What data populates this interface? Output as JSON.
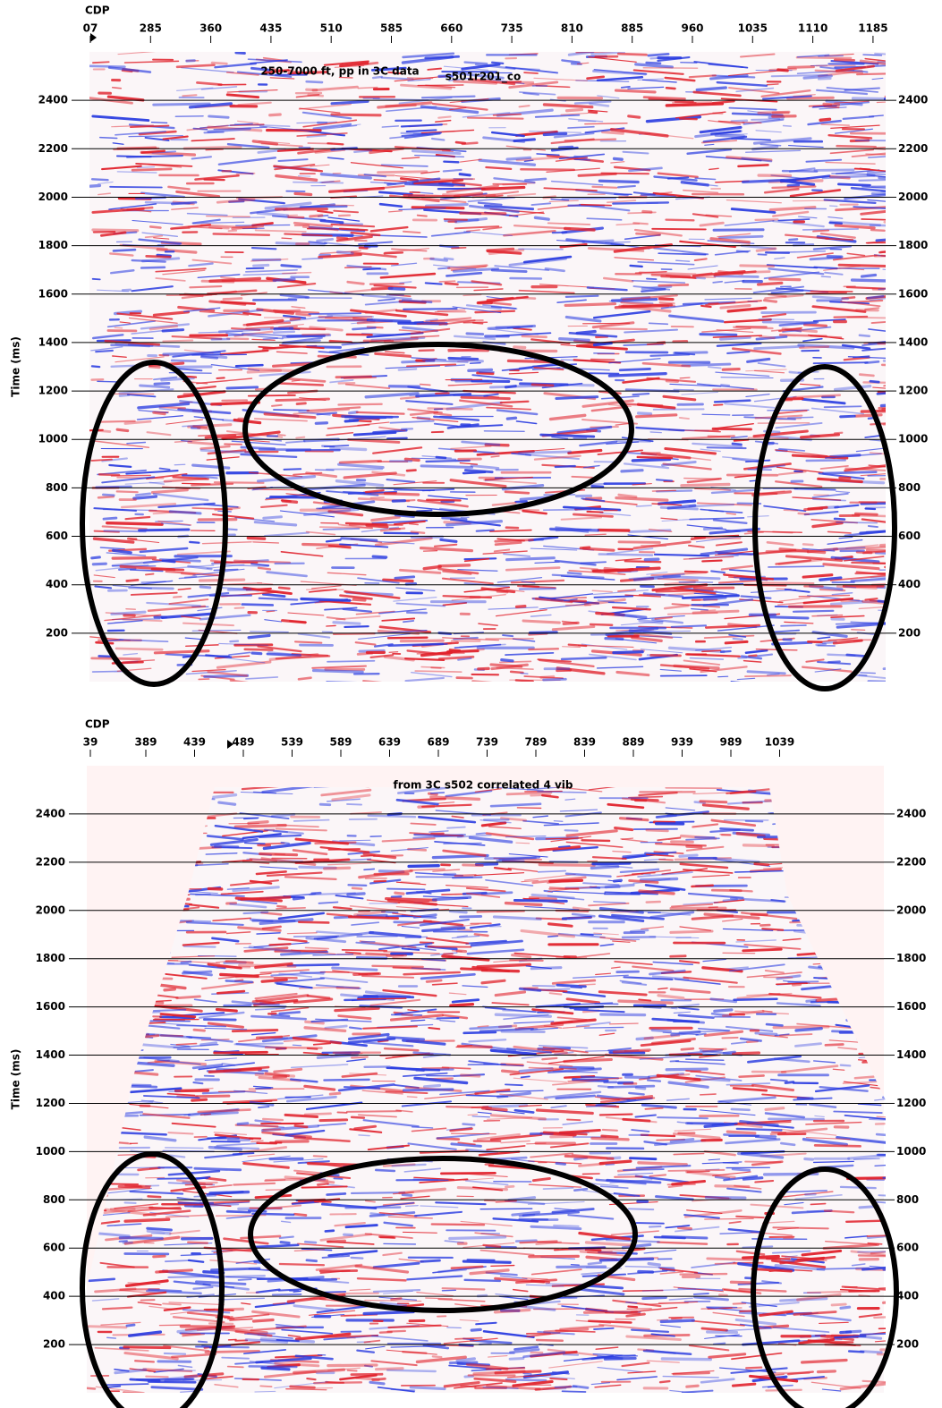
{
  "chart_data": [
    {
      "type": "seismic",
      "xlabel": "CDP",
      "ylabel": "Time (ms)",
      "title": "250-7000 ft, pp in 3C data",
      "subtitle": "s501r201_co",
      "categories": [
        "07",
        "285",
        "360",
        "435",
        "510",
        "585",
        "660",
        "735",
        "810",
        "885",
        "960",
        "1035",
        "1110",
        "1185"
      ],
      "ylim": [
        0,
        2600
      ],
      "yticks": [
        200,
        400,
        600,
        800,
        1000,
        1200,
        1400,
        1600,
        1800,
        2000,
        2200,
        2400
      ],
      "grid": true
    },
    {
      "type": "seismic",
      "xlabel": "CDP",
      "ylabel": "Time (ms)",
      "title": "from 3C s502 correlated 4 vib",
      "categories": [
        "39",
        "389",
        "439",
        "489",
        "539",
        "589",
        "639",
        "689",
        "739",
        "789",
        "839",
        "889",
        "939",
        "989",
        "1039"
      ],
      "ylim": [
        0,
        2600
      ],
      "yticks": [
        200,
        400,
        600,
        800,
        1000,
        1200,
        1400,
        1600,
        1800,
        2000,
        2200,
        2400
      ],
      "grid": true
    }
  ]
}
